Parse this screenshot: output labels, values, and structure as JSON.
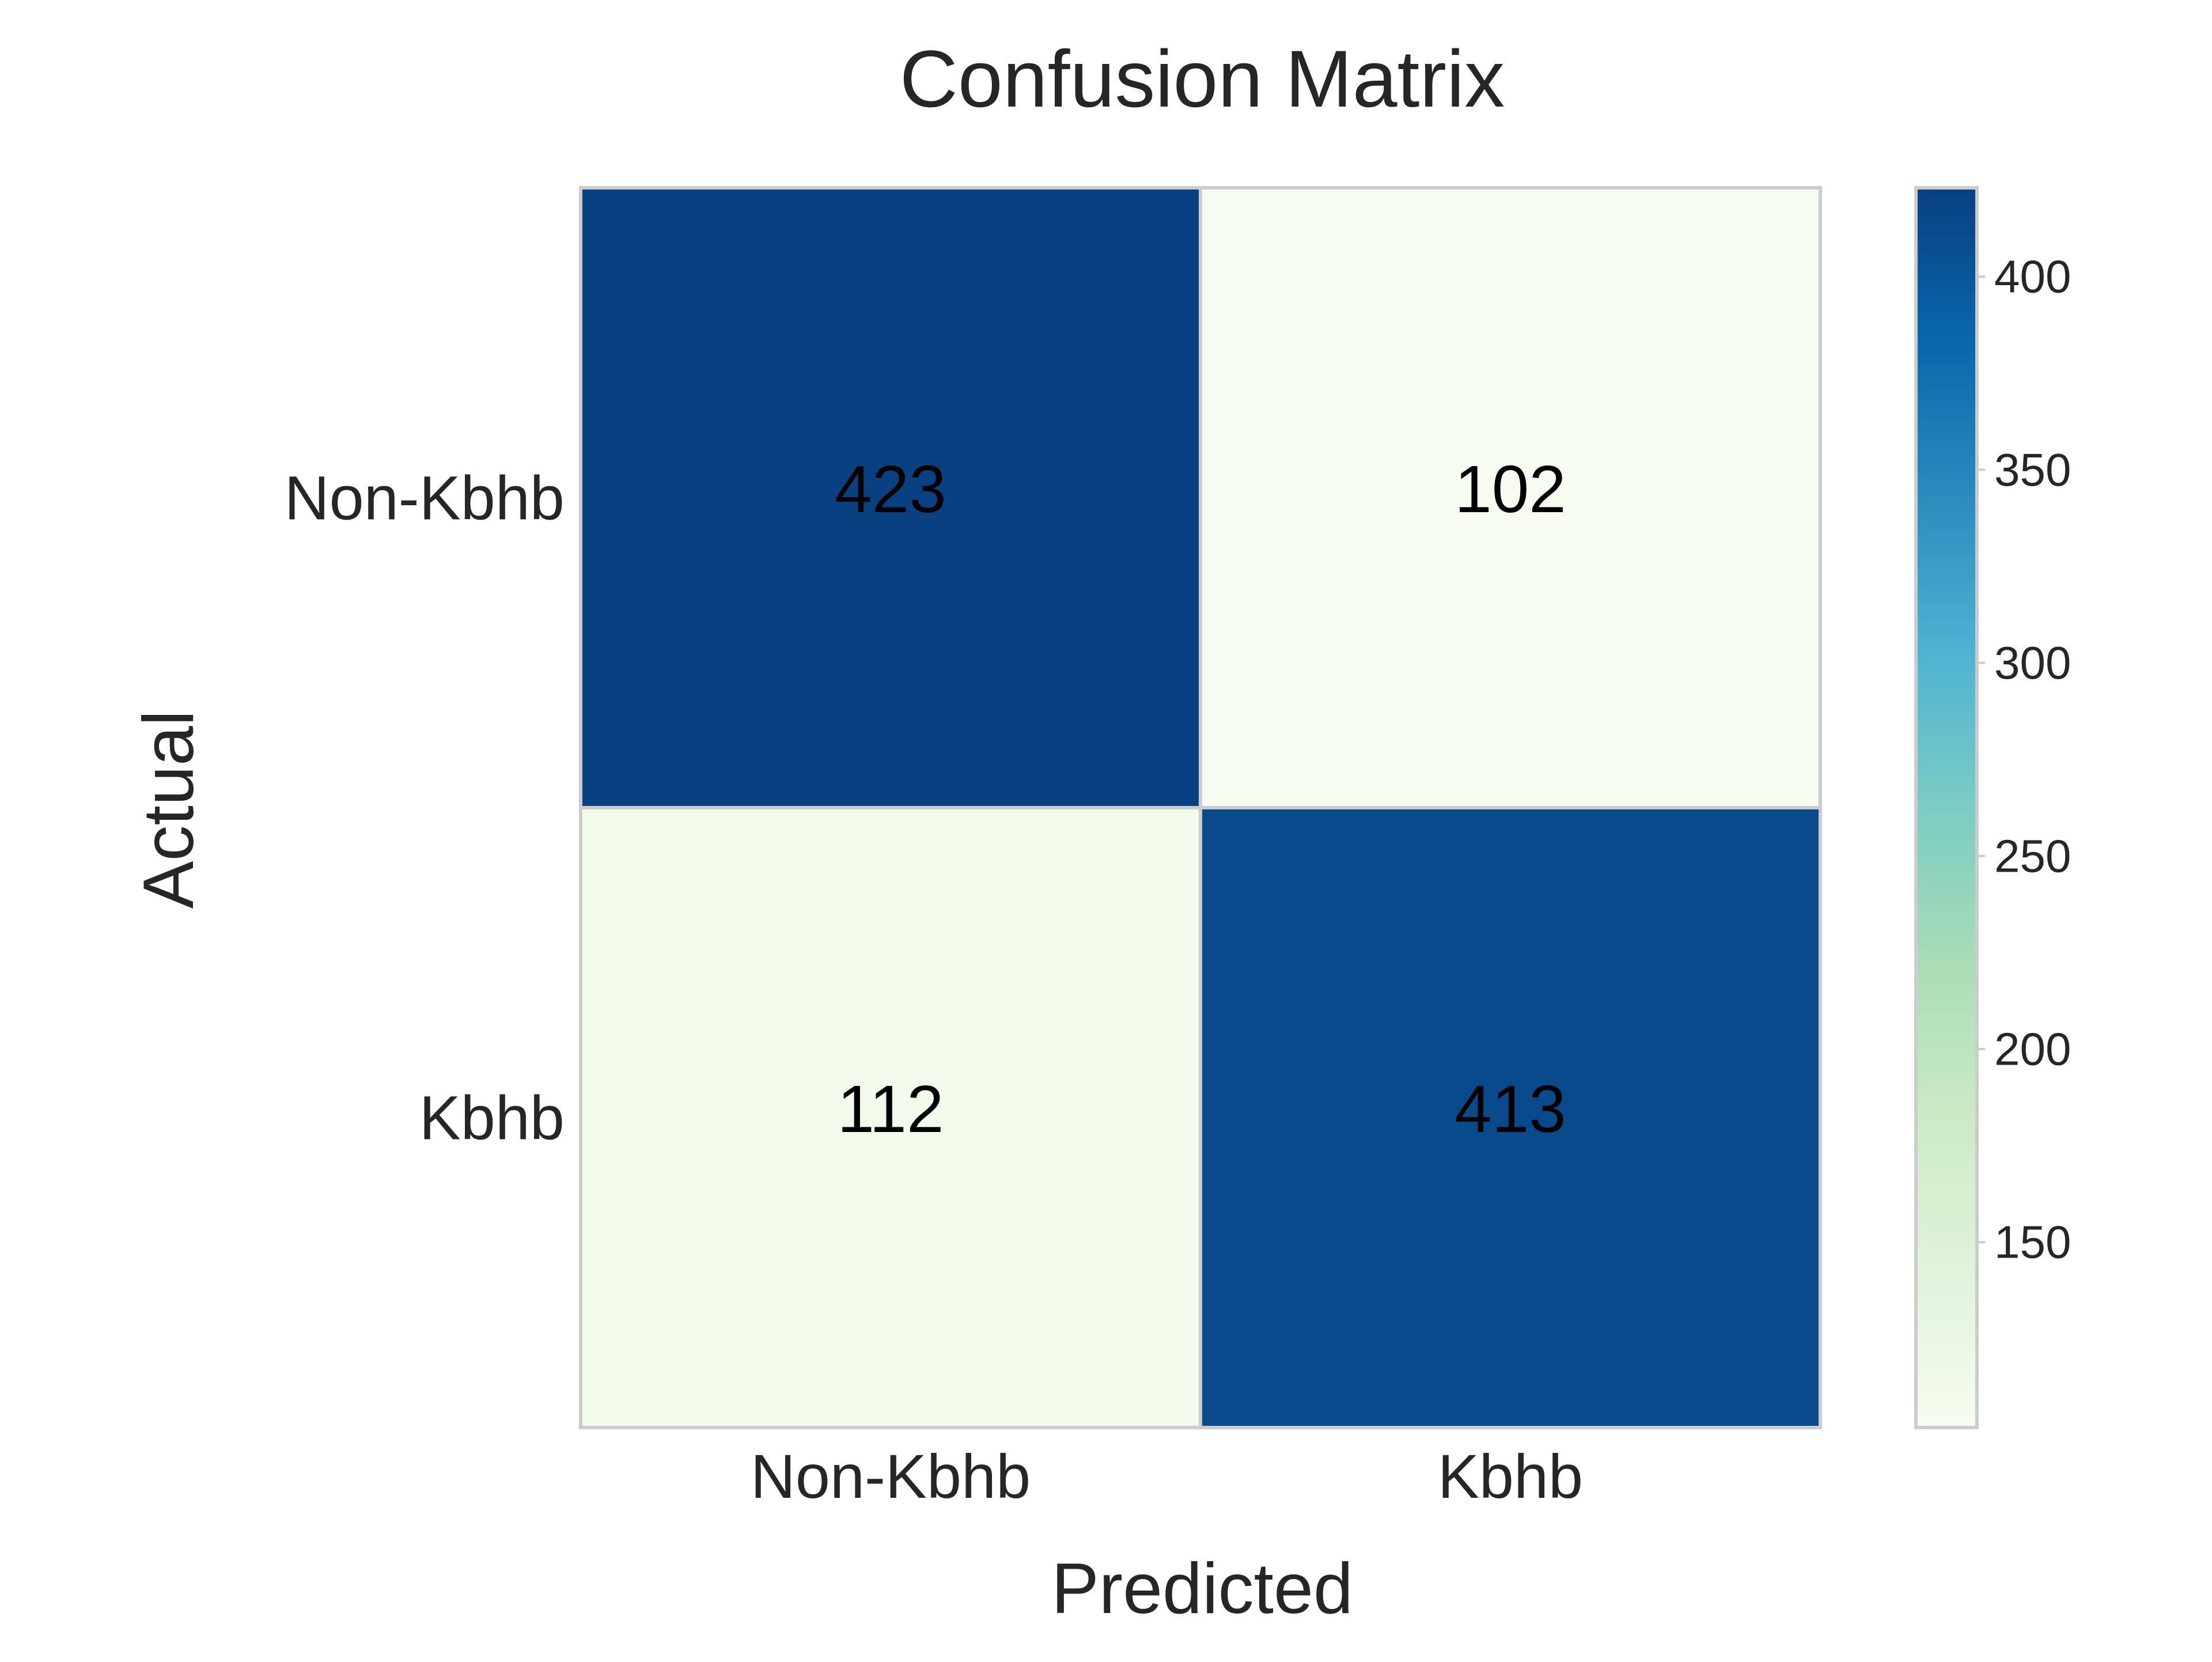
{
  "chart_data": {
    "type": "heatmap",
    "title": "Confusion Matrix",
    "xlabel": "Predicted",
    "ylabel": "Actual",
    "x_categories": [
      "Non-Kbhb",
      "Kbhb"
    ],
    "y_categories": [
      "Non-Kbhb",
      "Kbhb"
    ],
    "values": [
      [
        423,
        102
      ],
      [
        112,
        413
      ]
    ],
    "colormap": "GnBu",
    "colorbar": {
      "vmin": 102,
      "vmax": 423,
      "ticks": [
        150,
        200,
        250,
        300,
        350,
        400
      ],
      "tick_labels": [
        "150",
        "200",
        "250",
        "300",
        "350",
        "400"
      ]
    },
    "grid": false,
    "colors": {
      "low": "#f7fcf0",
      "high": "#084081",
      "cell_border": "#cccccc",
      "text": "#262626",
      "annotation": "#000000"
    }
  }
}
